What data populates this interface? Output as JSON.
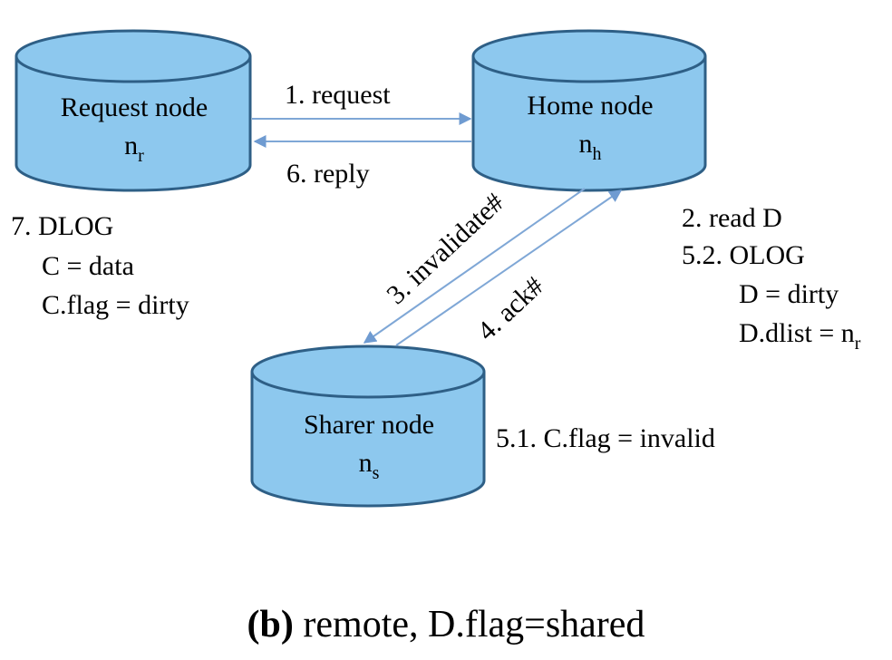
{
  "colors": {
    "node_fill": "#8DC8EE",
    "node_stroke": "#2E5F86",
    "arrow": "#7FA7D6"
  },
  "nodes": {
    "request": {
      "label": "Request node",
      "var": "n",
      "var_sub": "r"
    },
    "home": {
      "label": "Home node",
      "var": "n",
      "var_sub": "h"
    },
    "sharer": {
      "label": "Sharer node",
      "var": "n",
      "var_sub": "s"
    }
  },
  "edges": {
    "request": "1. request",
    "reply": "6. reply",
    "invalidate": "3. invalidate#",
    "ack": "4. ack#"
  },
  "notes": {
    "request_node": {
      "line1": "7. DLOG",
      "line2": "C = data",
      "line3": "C.flag = dirty"
    },
    "home_node": {
      "line1": "2. read D",
      "line2": "5.2. OLOG",
      "line3": "D = dirty",
      "line4_prefix": "D.dlist = n",
      "line4_sub": "r"
    },
    "sharer_node": {
      "line1": "5.1. C.flag = invalid"
    }
  },
  "caption": {
    "bold": "(b)",
    "text": " remote, D.flag=shared"
  }
}
